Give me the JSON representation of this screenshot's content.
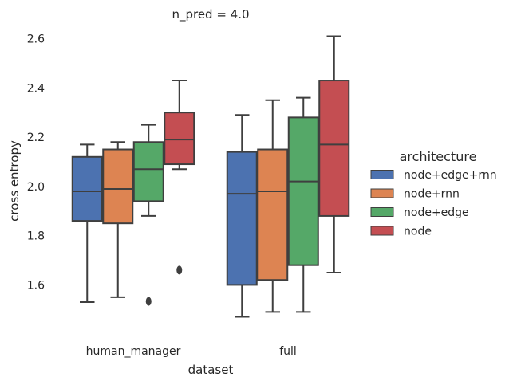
{
  "chart_data": {
    "type": "box",
    "title": "n_pred = 4.0",
    "xlabel": "dataset",
    "ylabel": "cross entropy",
    "categories": [
      "human_manager",
      "full"
    ],
    "ylim": [
      1.42,
      2.66
    ],
    "yticks": [
      1.6,
      1.8,
      2.0,
      2.2,
      2.4,
      2.6
    ],
    "ytick_labels": [
      "1.6",
      "1.8",
      "2.0",
      "2.2",
      "2.4",
      "2.6"
    ],
    "grid": false,
    "legend": {
      "title": "architecture",
      "placement": "right"
    },
    "series": [
      {
        "name": "node+edge+rnn",
        "color": "#4c72b0",
        "boxes": [
          {
            "min": 1.53,
            "q1": 1.86,
            "median": 1.98,
            "q3": 2.12,
            "max": 2.17,
            "outliers": []
          },
          {
            "min": 1.47,
            "q1": 1.6,
            "median": 1.97,
            "q3": 2.14,
            "max": 2.29,
            "outliers": []
          }
        ]
      },
      {
        "name": "node+rnn",
        "color": "#dd8452",
        "boxes": [
          {
            "min": 1.55,
            "q1": 1.85,
            "median": 1.99,
            "q3": 2.15,
            "max": 2.18,
            "outliers": []
          },
          {
            "min": 1.49,
            "q1": 1.62,
            "median": 1.98,
            "q3": 2.15,
            "max": 2.35,
            "outliers": []
          }
        ]
      },
      {
        "name": "node+edge",
        "color": "#55a868",
        "boxes": [
          {
            "min": 1.88,
            "q1": 1.94,
            "median": 2.07,
            "q3": 2.18,
            "max": 2.25,
            "outliers": [
              1.533
            ]
          },
          {
            "min": 1.49,
            "q1": 1.68,
            "median": 2.02,
            "q3": 2.28,
            "max": 2.36,
            "outliers": []
          }
        ]
      },
      {
        "name": "node",
        "color": "#c44e52",
        "boxes": [
          {
            "min": 2.07,
            "q1": 2.09,
            "median": 2.19,
            "q3": 2.3,
            "max": 2.43,
            "outliers": [
              1.66
            ]
          },
          {
            "min": 1.65,
            "q1": 1.88,
            "median": 2.17,
            "q3": 2.43,
            "max": 2.61,
            "outliers": []
          }
        ]
      }
    ]
  }
}
